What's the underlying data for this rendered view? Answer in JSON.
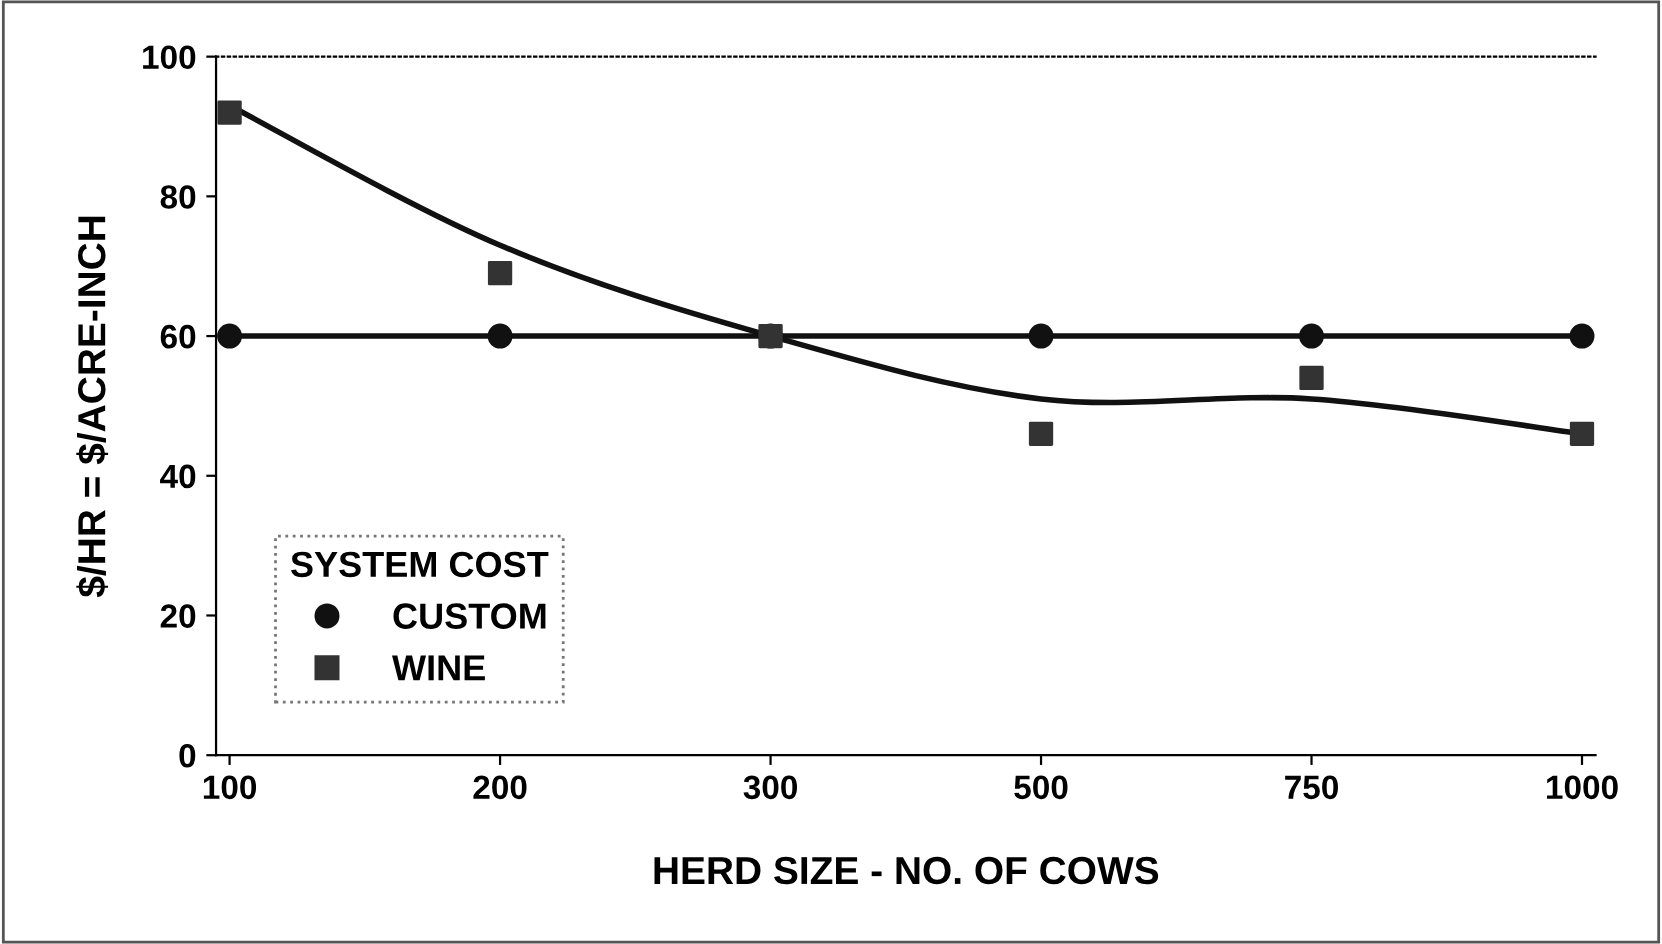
{
  "chart_data": {
    "type": "line",
    "xlabel": "HERD SIZE - NO. OF COWS",
    "ylabel": "$/HR = $/ACRE-INCH",
    "categories": [
      "100",
      "200",
      "300",
      "500",
      "750",
      "1000"
    ],
    "series": [
      {
        "name": "CUSTOM",
        "color": "#111111",
        "marker": "circle",
        "values": [
          60,
          60,
          60,
          60,
          60,
          60
        ]
      },
      {
        "name": "WINE",
        "type": "scatter",
        "color": "#333333",
        "marker": "square",
        "values": [
          92,
          69,
          60,
          46,
          54,
          46
        ]
      },
      {
        "type": "line",
        "color": "#111111",
        "marker": "none",
        "values": [
          93,
          73,
          60,
          51,
          51,
          46
        ]
      }
    ],
    "ylim": [
      0,
      100
    ],
    "yticks": [
      0,
      20,
      40,
      60,
      80,
      100
    ],
    "legend": "bottom left",
    "legend_title": "SYSTEM COST",
    "grid": false
  }
}
